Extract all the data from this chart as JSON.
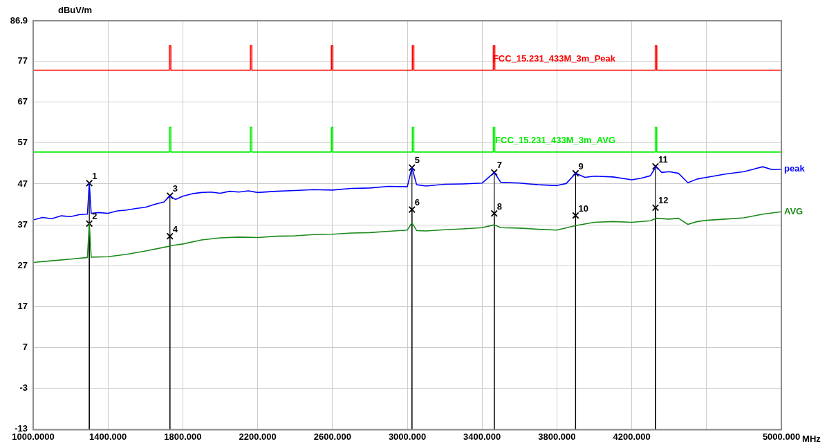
{
  "chart_data": {
    "type": "line",
    "ylabel": "dBuV/m",
    "xlabel": "MHz",
    "xlim": [
      1000,
      5000
    ],
    "xticks": [
      {
        "value": 1000,
        "label": "1000.0000"
      },
      {
        "value": 1400,
        "label": "1400.000"
      },
      {
        "value": 1800,
        "label": "1800.000"
      },
      {
        "value": 2200,
        "label": "2200.000"
      },
      {
        "value": 2600,
        "label": "2600.000"
      },
      {
        "value": 3000,
        "label": "3000.000"
      },
      {
        "value": 3400,
        "label": "3400.000"
      },
      {
        "value": 3800,
        "label": "3800.000"
      },
      {
        "value": 4200,
        "label": "4200.000"
      },
      {
        "value": 4600,
        "label": null
      },
      {
        "value": 5000,
        "label": "5000.000"
      }
    ],
    "ylim": [
      -13.1,
      86.9
    ],
    "yticks": [
      86.9,
      77,
      67,
      57,
      47,
      37,
      27,
      17,
      7,
      -3,
      -13
    ],
    "grid": true,
    "legend": false,
    "series": [
      {
        "name": "FCC_15.231_433M_3m_Peak",
        "color": "#ff0000",
        "x": [
          1000,
          1728,
          1728,
          1736,
          1736,
          2161,
          2161,
          2169,
          2169,
          2594,
          2594,
          2602,
          2602,
          3027,
          3027,
          3035,
          3035,
          3460,
          3460,
          3468,
          3468,
          4326,
          4326,
          4334,
          4334,
          5000
        ],
        "values": [
          74.8,
          74.8,
          80.8,
          80.8,
          74.8,
          74.8,
          80.8,
          80.8,
          74.8,
          74.8,
          80.8,
          80.8,
          74.8,
          74.8,
          80.8,
          80.8,
          74.8,
          74.8,
          80.8,
          80.8,
          74.8,
          74.8,
          80.8,
          80.8,
          74.8,
          74.8
        ]
      },
      {
        "name": "FCC_15.231_433M_3m_AVG",
        "color": "#00ee00",
        "x": [
          1000,
          1728,
          1728,
          1736,
          1736,
          2161,
          2161,
          2169,
          2169,
          2594,
          2594,
          2602,
          2602,
          3027,
          3027,
          3035,
          3035,
          3460,
          3460,
          3468,
          3468,
          4326,
          4326,
          4334,
          4334,
          5000
        ],
        "values": [
          54.8,
          54.8,
          60.8,
          60.8,
          54.8,
          54.8,
          60.8,
          60.8,
          54.8,
          54.8,
          60.8,
          60.8,
          54.8,
          54.8,
          60.8,
          60.8,
          54.8,
          54.8,
          60.8,
          60.8,
          54.8,
          54.8,
          60.8,
          60.8,
          54.8,
          54.8
        ]
      },
      {
        "name": "peak",
        "color": "#0000ff",
        "x": [
          1000,
          1050,
          1100,
          1150,
          1200,
          1250,
          1290,
          1300,
          1310,
          1350,
          1400,
          1450,
          1500,
          1550,
          1600,
          1650,
          1700,
          1730,
          1760,
          1800,
          1850,
          1900,
          1950,
          2000,
          2050,
          2100,
          2150,
          2200,
          2300,
          2400,
          2500,
          2600,
          2700,
          2800,
          2900,
          3000,
          3025,
          3050,
          3100,
          3200,
          3300,
          3400,
          3465,
          3500,
          3600,
          3700,
          3800,
          3850,
          3900,
          3950,
          4000,
          4100,
          4200,
          4250,
          4300,
          4330,
          4360,
          4400,
          4450,
          4500,
          4550,
          4600,
          4700,
          4800,
          4850,
          4900,
          4950,
          5000
        ],
        "values": [
          38.2,
          38.8,
          38.5,
          39.2,
          39.0,
          39.5,
          39.6,
          47.2,
          39.8,
          40.0,
          39.8,
          40.4,
          40.6,
          41.0,
          41.3,
          42.0,
          42.6,
          44.1,
          43.2,
          44.0,
          44.6,
          44.9,
          45.0,
          44.7,
          45.2,
          45.0,
          45.3,
          44.9,
          45.2,
          45.4,
          45.6,
          45.5,
          45.9,
          46.0,
          46.4,
          46.3,
          51.0,
          46.8,
          46.5,
          46.9,
          47.0,
          47.2,
          49.8,
          47.4,
          47.2,
          46.8,
          46.6,
          47.1,
          49.6,
          48.6,
          48.9,
          48.7,
          48.0,
          48.4,
          49.0,
          51.3,
          49.8,
          50.0,
          49.6,
          47.3,
          48.2,
          48.6,
          49.4,
          50.0,
          50.6,
          51.2,
          50.5,
          50.6
        ]
      },
      {
        "name": "AVG",
        "color": "#1a8a1a",
        "x": [
          1000,
          1100,
          1200,
          1290,
          1300,
          1310,
          1400,
          1500,
          1600,
          1700,
          1750,
          1800,
          1900,
          2000,
          2100,
          2200,
          2300,
          2400,
          2500,
          2600,
          2700,
          2800,
          2900,
          3000,
          3025,
          3050,
          3100,
          3200,
          3300,
          3400,
          3465,
          3500,
          3600,
          3700,
          3800,
          3900,
          4000,
          4100,
          4200,
          4300,
          4330,
          4400,
          4450,
          4500,
          4550,
          4600,
          4700,
          4800,
          4900,
          5000
        ],
        "values": [
          27.8,
          28.2,
          28.6,
          29.0,
          37.3,
          29.1,
          29.2,
          29.8,
          30.6,
          31.5,
          32.0,
          32.3,
          33.3,
          33.8,
          34.0,
          33.9,
          34.2,
          34.3,
          34.6,
          34.7,
          35.0,
          35.1,
          35.4,
          35.7,
          37.5,
          35.6,
          35.5,
          35.8,
          36.0,
          36.3,
          37.0,
          36.3,
          36.2,
          35.9,
          35.7,
          36.8,
          37.6,
          37.8,
          37.6,
          38.0,
          38.6,
          38.4,
          38.6,
          37.1,
          37.8,
          38.1,
          38.4,
          38.7,
          39.6,
          40.2
        ]
      },
      {
        "type": "lollipop",
        "color": "#000000",
        "marker": "cross",
        "x": [
          1300,
          1300,
          1731,
          1731,
          3025,
          3025,
          3465,
          3465,
          3900,
          3900,
          4327,
          4327
        ],
        "values": [
          47.2,
          37.3,
          44.1,
          34.2,
          51.0,
          40.7,
          49.8,
          39.8,
          49.6,
          39.3,
          51.3,
          41.2
        ]
      }
    ],
    "annotations": [
      {
        "text": "1",
        "x": 1300,
        "y": 47.2
      },
      {
        "text": "2",
        "x": 1300,
        "y": 37.3
      },
      {
        "text": "3",
        "x": 1731,
        "y": 44.1
      },
      {
        "text": "4",
        "x": 1731,
        "y": 34.2
      },
      {
        "text": "5",
        "x": 3025,
        "y": 51.0
      },
      {
        "text": "6",
        "x": 3025,
        "y": 40.7
      },
      {
        "text": "7",
        "x": 3465,
        "y": 49.8
      },
      {
        "text": "8",
        "x": 3465,
        "y": 39.8
      },
      {
        "text": "9",
        "x": 3900,
        "y": 49.6
      },
      {
        "text": "10",
        "x": 3900,
        "y": 39.3
      },
      {
        "text": "11",
        "x": 4327,
        "y": 51.3
      },
      {
        "text": "12",
        "x": 4327,
        "y": 41.2
      }
    ]
  }
}
